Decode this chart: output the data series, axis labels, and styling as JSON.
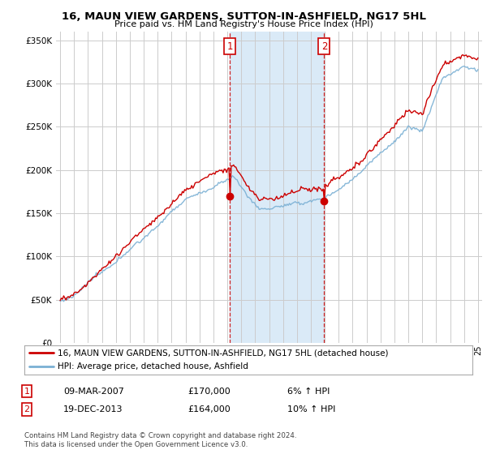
{
  "title": "16, MAUN VIEW GARDENS, SUTTON-IN-ASHFIELD, NG17 5HL",
  "subtitle": "Price paid vs. HM Land Registry's House Price Index (HPI)",
  "legend_line1": "16, MAUN VIEW GARDENS, SUTTON-IN-ASHFIELD, NG17 5HL (detached house)",
  "legend_line2": "HPI: Average price, detached house, Ashfield",
  "transaction1_date": "09-MAR-2007",
  "transaction1_price": "£170,000",
  "transaction1_hpi": "6% ↑ HPI",
  "transaction2_date": "19-DEC-2013",
  "transaction2_price": "£164,000",
  "transaction2_hpi": "10% ↑ HPI",
  "footer1": "Contains HM Land Registry data © Crown copyright and database right 2024.",
  "footer2": "This data is licensed under the Open Government Licence v3.0.",
  "red_color": "#cc0000",
  "blue_color": "#7ab0d4",
  "shade_color": "#daeaf7",
  "grid_color": "#cccccc",
  "background_color": "#ffffff",
  "ylim": [
    0,
    360000
  ],
  "xlim_start": 1994.7,
  "xlim_end": 2025.3,
  "transaction1_x": 2007.18,
  "transaction1_y": 170000,
  "transaction2_x": 2013.96,
  "transaction2_y": 164000
}
